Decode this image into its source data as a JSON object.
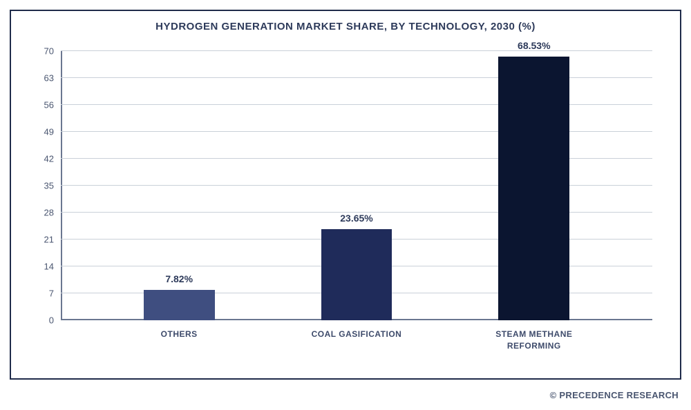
{
  "chart": {
    "type": "bar",
    "title": "HYDROGEN GENERATION MARKET SHARE, BY TECHNOLOGY, 2030 (%)",
    "title_fontsize": 15,
    "title_color": "#2d3a5a",
    "border_color": "#1f2b4a",
    "background_color": "#ffffff",
    "grid_color": "#c9d0d8",
    "axis_color": "#6a7690",
    "label_color": "#4a5670",
    "ylim_min": 0,
    "ylim_max": 70,
    "ytick_step": 7,
    "yticks": [
      0,
      7,
      14,
      21,
      28,
      35,
      42,
      49,
      56,
      63,
      70
    ],
    "bar_width_pct": 12,
    "bars": [
      {
        "category": "OTHERS",
        "value": 7.82,
        "label": "7.82%",
        "color": "#3f4e80",
        "x_center_pct": 20
      },
      {
        "category": "COAL GASIFICATION",
        "value": 23.65,
        "label": "23.65%",
        "color": "#1f2b5a",
        "x_center_pct": 50
      },
      {
        "category": "STEAM METHANE REFORMING",
        "value": 68.53,
        "label": "68.53%",
        "color": "#0b1530",
        "x_center_pct": 80
      }
    ]
  },
  "footer": "© PRECEDENCE RESEARCH"
}
